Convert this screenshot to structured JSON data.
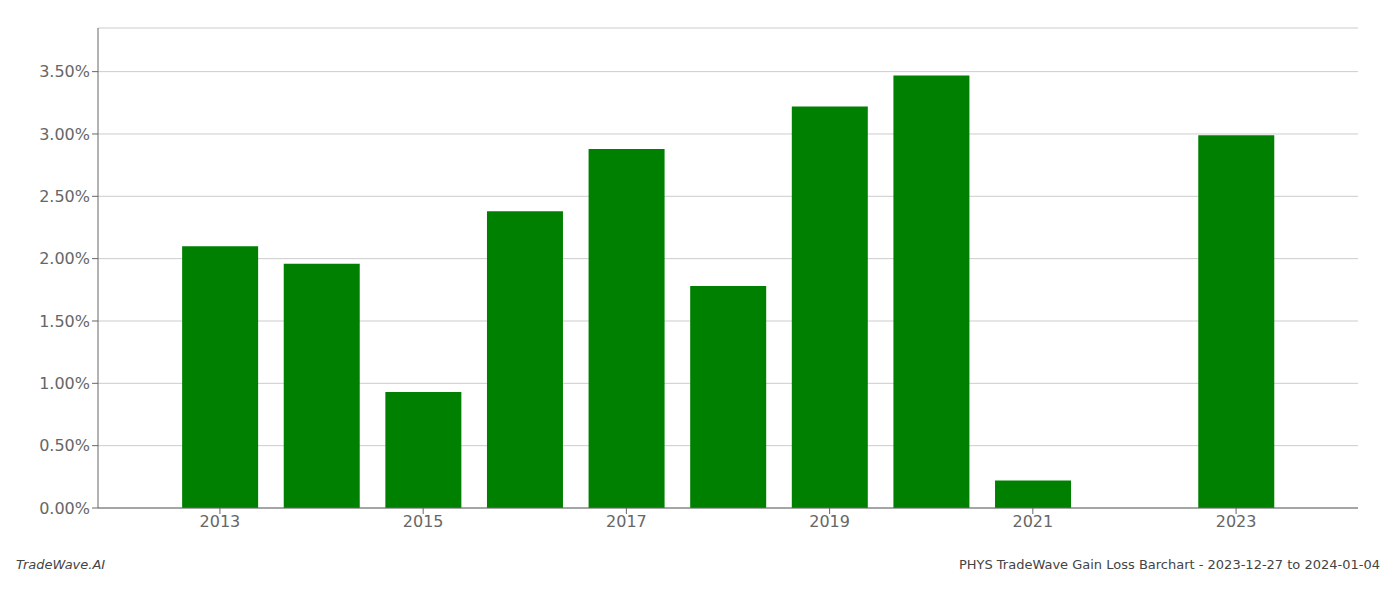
{
  "chart_data": {
    "type": "bar",
    "x": [
      2013,
      2014,
      2015,
      2016,
      2017,
      2018,
      2019,
      2020,
      2021,
      2023
    ],
    "values": [
      0.021,
      0.0196,
      0.0093,
      0.0238,
      0.0288,
      0.0178,
      0.0322,
      0.0347,
      0.0022,
      0.0299
    ],
    "color": "#008000",
    "xlim": [
      2011.8,
      2024.2
    ],
    "xticks": [
      2013,
      2015,
      2017,
      2019,
      2021,
      2023
    ],
    "ylim": [
      0,
      0.0385
    ],
    "yticks": [
      {
        "value": 0.0,
        "label": "0.00%"
      },
      {
        "value": 0.005,
        "label": "0.50%"
      },
      {
        "value": 0.01,
        "label": "1.00%"
      },
      {
        "value": 0.015,
        "label": "1.50%"
      },
      {
        "value": 0.02,
        "label": "2.00%"
      },
      {
        "value": 0.025,
        "label": "2.50%"
      },
      {
        "value": 0.03,
        "label": "3.00%"
      },
      {
        "value": 0.035,
        "label": "3.50%"
      }
    ],
    "grid": true,
    "annotations": [
      "TradeWave.AI",
      "PHYS TradeWave Gain Loss Barchart - 2023-12-27 to 2024-01-04"
    ]
  }
}
